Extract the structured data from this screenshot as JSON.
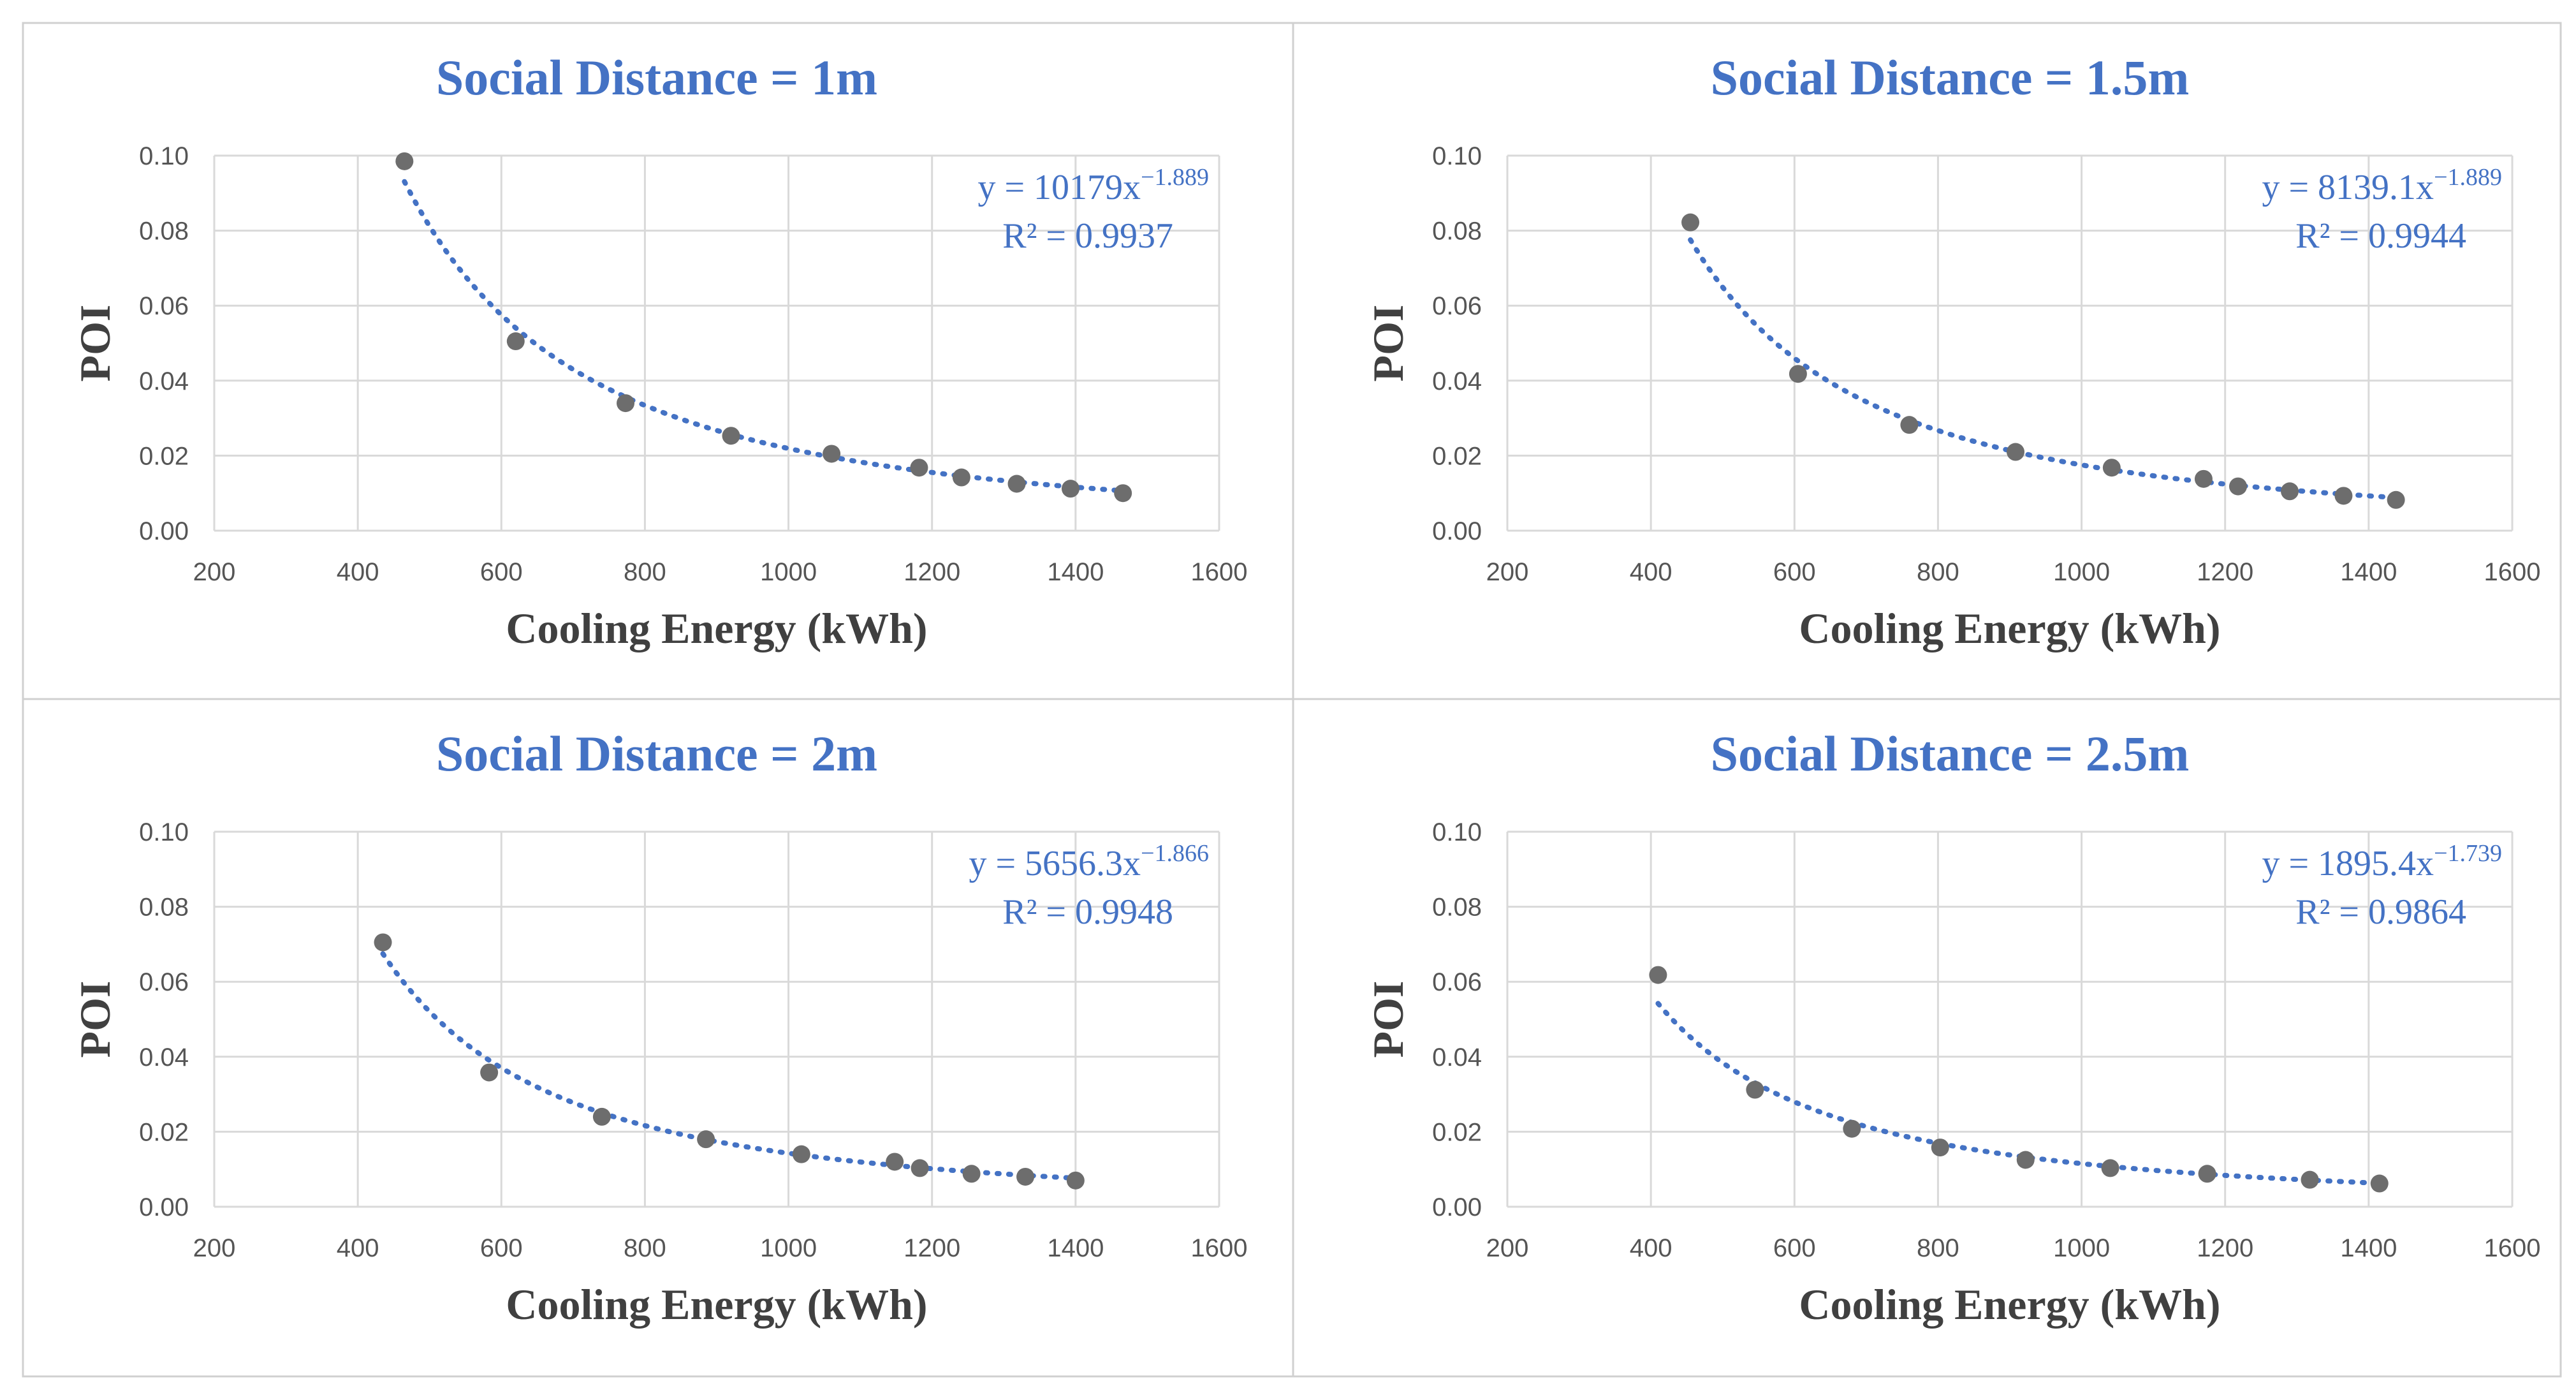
{
  "chart_data": [
    {
      "type": "scatter",
      "title": "Social Distance = 1m",
      "xlabel": "Cooling Energy (kWh)",
      "ylabel": "POI",
      "xlim": [
        200,
        1600
      ],
      "ylim": [
        0,
        0.1
      ],
      "xticks": [
        "200",
        "400",
        "600",
        "800",
        "1000",
        "1200",
        "1400",
        "1600"
      ],
      "yticks": [
        "0.00",
        "0.02",
        "0.04",
        "0.06",
        "0.08",
        "0.10"
      ],
      "grid": true,
      "legend": "none",
      "point_color": "#6d6d6d",
      "trend_color": "#4472c4",
      "title_color": "#4472c4",
      "series": [
        {
          "x": [
            465,
            620,
            773,
            920,
            1060,
            1182,
            1241,
            1318,
            1393,
            1466
          ],
          "y": [
            0.0985,
            0.0505,
            0.034,
            0.0253,
            0.0205,
            0.0168,
            0.0142,
            0.0125,
            0.0112,
            0.01
          ]
        }
      ],
      "trendline": {
        "type": "power",
        "a": 10179,
        "b": -1.889,
        "x_from": 465,
        "x_to": 1466
      },
      "equation": {
        "prefix": "y = 10179x",
        "exponent": "−1.889",
        "r2": "R² = 0.9937"
      }
    },
    {
      "type": "scatter",
      "title": "Social Distance = 1.5m",
      "xlabel": "Cooling Energy (kWh)",
      "ylabel": "POI",
      "xlim": [
        200,
        1600
      ],
      "ylim": [
        0,
        0.1
      ],
      "xticks": [
        "200",
        "400",
        "600",
        "800",
        "1000",
        "1200",
        "1400",
        "1600"
      ],
      "yticks": [
        "0.00",
        "0.02",
        "0.04",
        "0.06",
        "0.08",
        "0.10"
      ],
      "grid": true,
      "legend": "none",
      "point_color": "#6d6d6d",
      "trend_color": "#4472c4",
      "title_color": "#4472c4",
      "series": [
        {
          "x": [
            455,
            605,
            760,
            908,
            1042,
            1170,
            1218,
            1290,
            1365,
            1438
          ],
          "y": [
            0.0822,
            0.0418,
            0.0282,
            0.021,
            0.0168,
            0.0138,
            0.0118,
            0.0105,
            0.0093,
            0.0082
          ]
        }
      ],
      "trendline": {
        "type": "power",
        "a": 8139.1,
        "b": -1.889,
        "x_from": 455,
        "x_to": 1438
      },
      "equation": {
        "prefix": "y = 8139.1x",
        "exponent": "−1.889",
        "r2": "R² = 0.9944"
      }
    },
    {
      "type": "scatter",
      "title": "Social Distance = 2m",
      "xlabel": "Cooling Energy (kWh)",
      "ylabel": "POI",
      "xlim": [
        200,
        1600
      ],
      "ylim": [
        0,
        0.1
      ],
      "xticks": [
        "200",
        "400",
        "600",
        "800",
        "1000",
        "1200",
        "1400",
        "1600"
      ],
      "yticks": [
        "0.00",
        "0.02",
        "0.04",
        "0.06",
        "0.08",
        "0.10"
      ],
      "grid": true,
      "legend": "none",
      "point_color": "#6d6d6d",
      "trend_color": "#4472c4",
      "title_color": "#4472c4",
      "series": [
        {
          "x": [
            435,
            583,
            740,
            885,
            1018,
            1148,
            1183,
            1255,
            1330,
            1400
          ],
          "y": [
            0.0705,
            0.0358,
            0.024,
            0.018,
            0.014,
            0.012,
            0.0103,
            0.0088,
            0.008,
            0.007
          ]
        }
      ],
      "trendline": {
        "type": "power",
        "a": 5656.3,
        "b": -1.866,
        "x_from": 435,
        "x_to": 1400
      },
      "equation": {
        "prefix": "y = 5656.3x",
        "exponent": "−1.866",
        "r2": "R² = 0.9948"
      }
    },
    {
      "type": "scatter",
      "title": "Social Distance = 2.5m",
      "xlabel": "Cooling Energy (kWh)",
      "ylabel": "POI",
      "xlim": [
        200,
        1600
      ],
      "ylim": [
        0,
        0.1
      ],
      "xticks": [
        "200",
        "400",
        "600",
        "800",
        "1000",
        "1200",
        "1400",
        "1600"
      ],
      "yticks": [
        "0.00",
        "0.02",
        "0.04",
        "0.06",
        "0.08",
        "0.10"
      ],
      "grid": true,
      "legend": "none",
      "point_color": "#6d6d6d",
      "trend_color": "#4472c4",
      "title_color": "#4472c4",
      "series": [
        {
          "x": [
            410,
            545,
            680,
            803,
            922,
            1040,
            1175,
            1318,
            1415
          ],
          "y": [
            0.0618,
            0.0312,
            0.0208,
            0.0158,
            0.0125,
            0.0103,
            0.0088,
            0.0072,
            0.0062
          ]
        }
      ],
      "trendline": {
        "type": "power",
        "a": 1895.4,
        "b": -1.739,
        "x_from": 410,
        "x_to": 1415
      },
      "equation": {
        "prefix": "y = 1895.4x",
        "exponent": "−1.739",
        "r2": "R² = 0.9864"
      }
    }
  ]
}
